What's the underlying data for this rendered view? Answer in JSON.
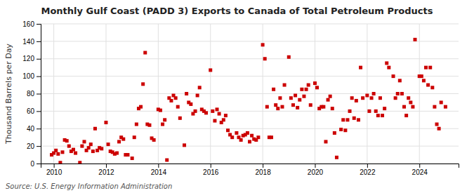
{
  "chart_data": {
    "type": "scatter",
    "title": "Monthly Gulf Coast (PADD 3) Exports to Canada of Total Petroleum Products",
    "ylabel": "Thousand Barrels per Day",
    "source": "Source: U.S. Energy Information Administration",
    "color": "#cc0000",
    "marker": "square",
    "grid": true,
    "xlim": [
      2009.5,
      2025.5
    ],
    "ylim": [
      0,
      160
    ],
    "xticks": [
      2010,
      2012,
      2014,
      2016,
      2018,
      2020,
      2022,
      2024
    ],
    "yticks": [
      0,
      20,
      40,
      60,
      80,
      100,
      120,
      140,
      160
    ],
    "x": [
      2009.917,
      2010.0,
      2010.083,
      2010.167,
      2010.25,
      2010.333,
      2010.417,
      2010.5,
      2010.583,
      2010.667,
      2010.75,
      2010.833,
      2011.0,
      2011.083,
      2011.167,
      2011.25,
      2011.333,
      2011.417,
      2011.5,
      2011.583,
      2011.667,
      2011.75,
      2011.833,
      2012.0,
      2012.083,
      2012.167,
      2012.25,
      2012.333,
      2012.417,
      2012.5,
      2012.583,
      2012.667,
      2012.75,
      2012.833,
      2013.0,
      2013.083,
      2013.167,
      2013.25,
      2013.333,
      2013.417,
      2013.5,
      2013.583,
      2013.667,
      2013.75,
      2013.833,
      2014.0,
      2014.083,
      2014.167,
      2014.25,
      2014.333,
      2014.417,
      2014.5,
      2014.583,
      2014.667,
      2014.75,
      2014.833,
      2015.0,
      2015.083,
      2015.167,
      2015.25,
      2015.333,
      2015.417,
      2015.5,
      2015.583,
      2015.667,
      2015.75,
      2015.833,
      2016.0,
      2016.083,
      2016.167,
      2016.25,
      2016.333,
      2016.417,
      2016.5,
      2016.583,
      2016.667,
      2016.75,
      2016.833,
      2017.0,
      2017.083,
      2017.167,
      2017.25,
      2017.333,
      2017.417,
      2017.5,
      2017.583,
      2017.667,
      2017.75,
      2017.833,
      2018.0,
      2018.083,
      2018.167,
      2018.25,
      2018.333,
      2018.417,
      2018.5,
      2018.583,
      2018.667,
      2018.75,
      2018.833,
      2019.0,
      2019.083,
      2019.167,
      2019.25,
      2019.333,
      2019.417,
      2019.5,
      2019.583,
      2019.667,
      2019.75,
      2019.833,
      2020.0,
      2020.083,
      2020.167,
      2020.25,
      2020.333,
      2020.417,
      2020.5,
      2020.583,
      2020.667,
      2020.75,
      2020.833,
      2021.0,
      2021.083,
      2021.167,
      2021.25,
      2021.333,
      2021.417,
      2021.5,
      2021.583,
      2021.667,
      2021.75,
      2021.833,
      2022.0,
      2022.083,
      2022.167,
      2022.25,
      2022.333,
      2022.417,
      2022.5,
      2022.583,
      2022.667,
      2022.75,
      2022.833,
      2023.0,
      2023.083,
      2023.167,
      2023.25,
      2023.333,
      2023.417,
      2023.5,
      2023.583,
      2023.667,
      2023.75,
      2023.833,
      2024.0,
      2024.083,
      2024.167,
      2024.25,
      2024.333,
      2024.417,
      2024.5,
      2024.583,
      2024.667,
      2024.75,
      2024.833,
      2025.0
    ],
    "values": [
      10,
      12,
      15,
      11,
      1,
      13,
      27,
      26,
      20,
      14,
      16,
      12,
      1,
      20,
      25,
      15,
      18,
      22,
      14,
      40,
      15,
      18,
      17,
      47,
      22,
      14,
      13,
      11,
      12,
      25,
      30,
      28,
      10,
      10,
      6,
      30,
      45,
      63,
      65,
      91,
      127,
      45,
      44,
      29,
      27,
      62,
      61,
      45,
      50,
      4,
      75,
      72,
      78,
      75,
      65,
      52,
      21,
      80,
      70,
      68,
      57,
      60,
      78,
      87,
      62,
      60,
      58,
      107,
      60,
      49,
      62,
      57,
      47,
      50,
      55,
      38,
      33,
      30,
      35,
      30,
      27,
      32,
      33,
      35,
      25,
      32,
      28,
      27,
      30,
      136,
      120,
      65,
      30,
      30,
      85,
      67,
      63,
      75,
      65,
      90,
      122,
      75,
      67,
      78,
      64,
      73,
      85,
      77,
      85,
      90,
      67,
      92,
      87,
      63,
      65,
      65,
      25,
      73,
      77,
      63,
      35,
      7,
      39,
      50,
      38,
      50,
      60,
      75,
      52,
      72,
      50,
      110,
      75,
      78,
      60,
      75,
      80,
      60,
      55,
      75,
      55,
      63,
      115,
      110,
      100,
      75,
      80,
      95,
      80,
      65,
      55,
      75,
      70,
      65,
      142,
      100,
      100,
      95,
      110,
      90,
      110,
      87,
      65,
      45,
      40,
      70,
      65
    ]
  }
}
